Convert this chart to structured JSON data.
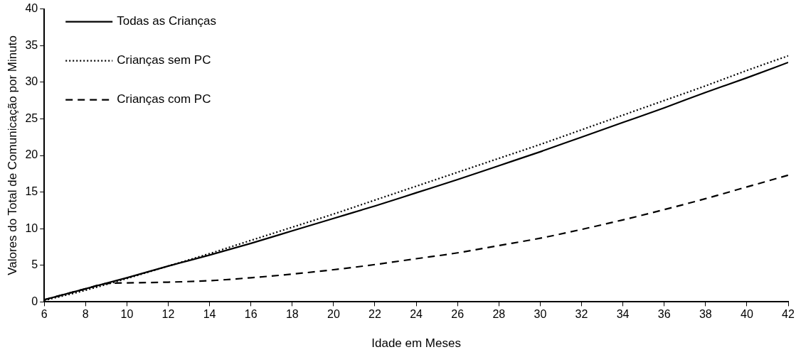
{
  "chart_data": {
    "type": "line",
    "xlabel": "Idade em Meses",
    "ylabel": "Valores do Total de Comunicação por Minuto",
    "xlim": [
      6,
      42
    ],
    "xticks": [
      6,
      8,
      10,
      12,
      14,
      16,
      18,
      20,
      22,
      24,
      26,
      28,
      30,
      32,
      34,
      36,
      38,
      40,
      42
    ],
    "ylim": [
      0,
      40
    ],
    "yticks": [
      0,
      5,
      10,
      15,
      20,
      25,
      30,
      35,
      40
    ],
    "grid": false,
    "legend": "top left",
    "marker": "none",
    "x": [
      6,
      8,
      10,
      12,
      14,
      16,
      18,
      20,
      22,
      24,
      26,
      28,
      30,
      32,
      34,
      36,
      38,
      40,
      42
    ],
    "series": [
      {
        "name": "Todas as Crianças",
        "color": "#000000",
        "line_style": "solid",
        "values": [
          0.3,
          1.8,
          3.3,
          4.9,
          6.4,
          8.0,
          9.7,
          11.4,
          13.1,
          14.9,
          16.7,
          18.6,
          20.5,
          22.5,
          24.5,
          26.5,
          28.6,
          30.6,
          32.7
        ]
      },
      {
        "name": "Crianças sem PC",
        "color": "#000000",
        "line_style": "dotted",
        "values": [
          0.2,
          1.6,
          3.2,
          4.9,
          6.6,
          8.4,
          10.2,
          12.0,
          13.9,
          15.8,
          17.7,
          19.6,
          21.5,
          23.5,
          25.5,
          27.5,
          29.5,
          31.6,
          33.6
        ]
      },
      {
        "name": "Crianças com PC",
        "color": "#000000",
        "line_style": "dashed",
        "x": [
          6,
          8,
          9,
          10,
          12,
          14,
          16,
          18,
          20,
          22,
          24,
          26,
          28,
          30,
          32,
          34,
          36,
          38,
          40,
          42
        ],
        "values": [
          0.3,
          1.8,
          2.5,
          2.6,
          2.7,
          2.9,
          3.3,
          3.8,
          4.4,
          5.1,
          5.9,
          6.7,
          7.7,
          8.7,
          9.9,
          11.2,
          12.6,
          14.1,
          15.7,
          17.3
        ]
      }
    ]
  }
}
